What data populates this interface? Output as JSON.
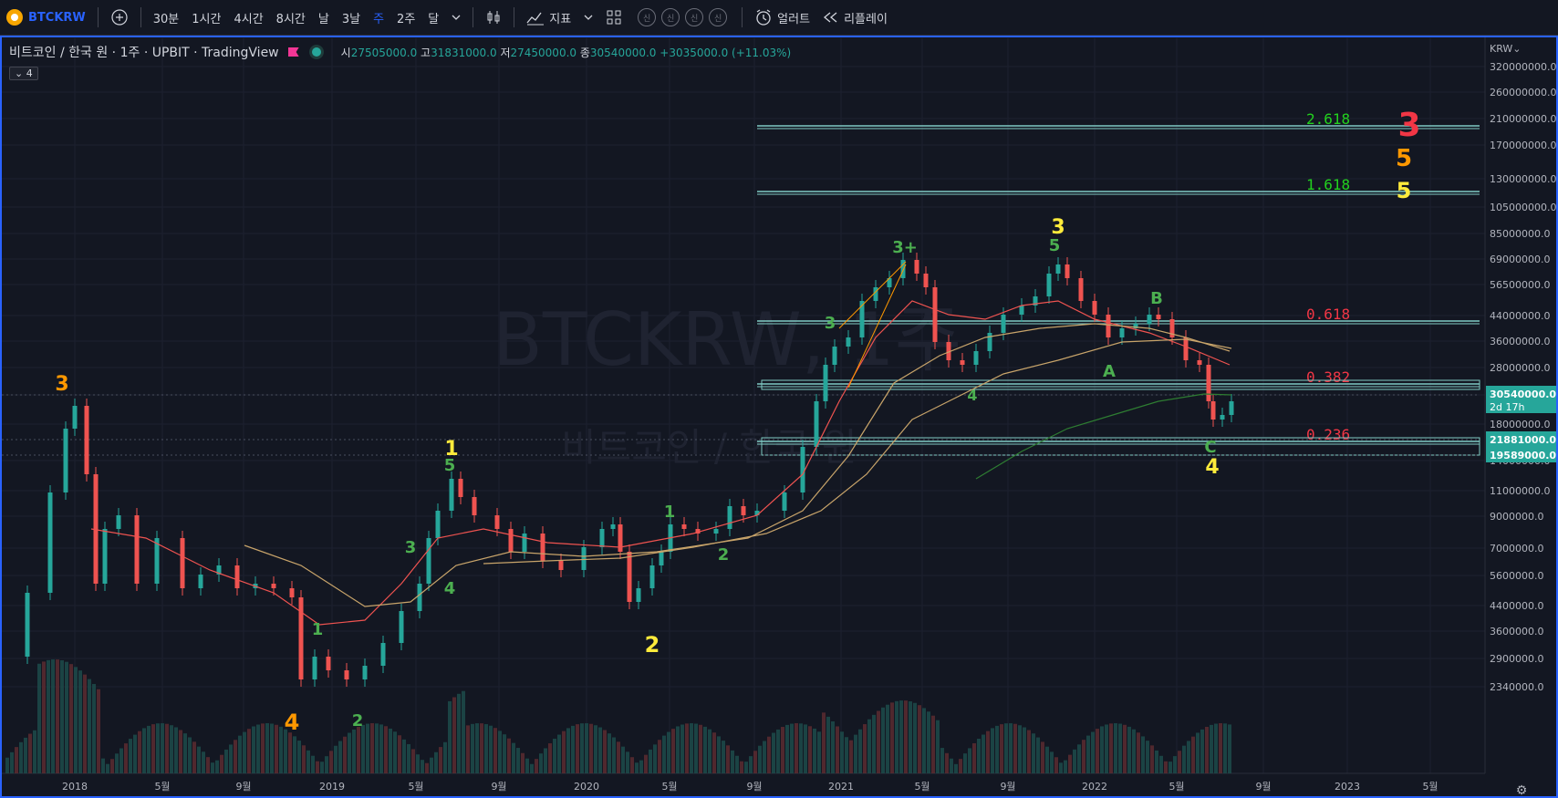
{
  "toolbar": {
    "symbol": "BTCKRW",
    "intervals": [
      "30분",
      "1시간",
      "4시간",
      "8시간",
      "날",
      "3날",
      "주",
      "2주",
      "달"
    ],
    "active_interval": "주",
    "indicators_label": "지표",
    "circle_icons": [
      "신",
      "신",
      "신",
      "신"
    ],
    "alert_label": "얼러트",
    "replay_label": "리플레이"
  },
  "legend": {
    "title": "비트코인 / 한국 원 · 1주 · UPBIT · TradingView",
    "open_label": "시",
    "open": "27505000.0",
    "high_label": "고",
    "high": "31831000.0",
    "low_label": "저",
    "low": "27450000.0",
    "close_label": "종",
    "close": "30540000.0",
    "change": "+3035000.0 (+11.03%)",
    "collapse_count": "4"
  },
  "watermark": {
    "line1": "BTCKRW, 1주",
    "line2": "비트코인 / 한국 원"
  },
  "price_axis": {
    "currency": "KRW",
    "ticks": [
      "320000000.0",
      "260000000.0",
      "210000000.0",
      "170000000.0",
      "130000000.0",
      "105000000.0",
      "85000000.0",
      "69000000.0",
      "56500000.0",
      "44000000.0",
      "36000000.0",
      "28000000.0",
      "22000000.0",
      "18000000.0",
      "14000000.0",
      "11000000.0",
      "9000000.0",
      "7000000.0",
      "5600000.0",
      "4400000.0",
      "3600000.0",
      "2900000.0",
      "2340000.0"
    ],
    "last_price": "30540000.0",
    "countdown": "2d 17h",
    "zone_top": "21881000.0",
    "zone_bottom": "19589000.0"
  },
  "time_axis": {
    "ticks": [
      "2018",
      "5월",
      "9월",
      "2019",
      "5월",
      "9월",
      "2020",
      "5월",
      "9월",
      "2021",
      "5월",
      "9월",
      "2022",
      "5월",
      "9월",
      "2023",
      "5월"
    ]
  },
  "fib_levels": [
    {
      "label": "2.618",
      "color": "#22d11e"
    },
    {
      "label": "1.618",
      "color": "#22d11e"
    },
    {
      "label": "0.618",
      "color": "#f23645"
    },
    {
      "label": "0.382",
      "color": "#f23645"
    },
    {
      "label": "0.236",
      "color": "#f23645"
    }
  ],
  "wave_labels": [
    {
      "text": "3",
      "color": "#ff9800"
    },
    {
      "text": "4",
      "color": "#ff9800"
    },
    {
      "text": "1",
      "color": "#4caf50"
    },
    {
      "text": "2",
      "color": "#4caf50"
    },
    {
      "text": "3",
      "color": "#4caf50"
    },
    {
      "text": "4",
      "color": "#4caf50"
    },
    {
      "text": "1",
      "color": "#ffeb3b"
    },
    {
      "text": "5",
      "color": "#4caf50"
    },
    {
      "text": "2",
      "color": "#ffeb3b"
    },
    {
      "text": "1",
      "color": "#4caf50"
    },
    {
      "text": "2",
      "color": "#4caf50"
    },
    {
      "text": "3",
      "color": "#4caf50"
    },
    {
      "text": "3+",
      "color": "#4caf50"
    },
    {
      "text": "4",
      "color": "#4caf50"
    },
    {
      "text": "3",
      "color": "#ffeb3b"
    },
    {
      "text": "5",
      "color": "#4caf50"
    },
    {
      "text": "B",
      "color": "#4caf50"
    },
    {
      "text": "A",
      "color": "#4caf50"
    },
    {
      "text": "C",
      "color": "#4caf50"
    },
    {
      "text": "4",
      "color": "#ffeb3b"
    },
    {
      "text": "3",
      "color": "#f23645"
    },
    {
      "text": "5",
      "color": "#ff9800"
    },
    {
      "text": "5",
      "color": "#ffeb3b"
    }
  ],
  "colors": {
    "up": "#26a69a",
    "down": "#ef5350",
    "fib_line": "#80cbc4"
  }
}
